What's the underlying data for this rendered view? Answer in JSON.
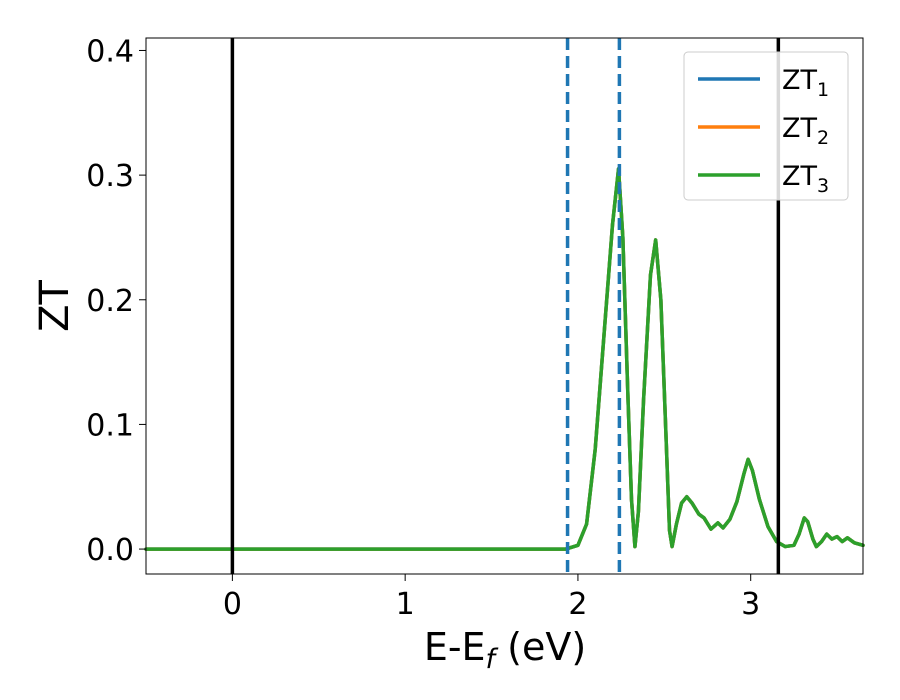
{
  "chart_data": {
    "type": "line",
    "xlabel": {
      "main": "E-E",
      "sub": "f",
      "suffix": " (eV)"
    },
    "ylabel": "ZT",
    "xlim": [
      -0.5,
      3.65
    ],
    "ylim": [
      -0.02,
      0.41
    ],
    "x_ticks": [
      0,
      1,
      2,
      3
    ],
    "y_ticks": [
      0.0,
      0.1,
      0.2,
      0.3,
      0.4
    ],
    "grid": false,
    "legend_position": "top-right",
    "series": [
      {
        "name": "ZT",
        "subscript": "1",
        "color": "#1f77b4",
        "points": [
          [
            -0.5,
            0
          ],
          [
            1.93,
            0
          ],
          [
            2.0,
            0.003
          ],
          [
            2.05,
            0.02
          ],
          [
            2.1,
            0.08
          ],
          [
            2.15,
            0.17
          ],
          [
            2.2,
            0.26
          ],
          [
            2.235,
            0.305
          ],
          [
            2.26,
            0.25
          ],
          [
            2.29,
            0.12
          ],
          [
            2.31,
            0.04
          ],
          [
            2.33,
            0.002
          ],
          [
            2.35,
            0.03
          ],
          [
            2.38,
            0.12
          ],
          [
            2.42,
            0.22
          ],
          [
            2.45,
            0.248
          ],
          [
            2.48,
            0.2
          ],
          [
            2.51,
            0.09
          ],
          [
            2.53,
            0.015
          ],
          [
            2.545,
            0.002
          ],
          [
            2.57,
            0.02
          ],
          [
            2.6,
            0.037
          ],
          [
            2.63,
            0.042
          ],
          [
            2.66,
            0.037
          ],
          [
            2.7,
            0.028
          ],
          [
            2.73,
            0.025
          ],
          [
            2.77,
            0.016
          ],
          [
            2.81,
            0.021
          ],
          [
            2.84,
            0.017
          ],
          [
            2.88,
            0.024
          ],
          [
            2.92,
            0.038
          ],
          [
            2.96,
            0.06
          ],
          [
            2.985,
            0.072
          ],
          [
            3.01,
            0.063
          ],
          [
            3.05,
            0.04
          ],
          [
            3.1,
            0.018
          ],
          [
            3.15,
            0.006
          ],
          [
            3.2,
            0.002
          ],
          [
            3.25,
            0.003
          ],
          [
            3.28,
            0.012
          ],
          [
            3.31,
            0.025
          ],
          [
            3.33,
            0.022
          ],
          [
            3.36,
            0.008
          ],
          [
            3.38,
            0.002
          ],
          [
            3.41,
            0.006
          ],
          [
            3.44,
            0.012
          ],
          [
            3.47,
            0.008
          ],
          [
            3.5,
            0.01
          ],
          [
            3.53,
            0.006
          ],
          [
            3.56,
            0.009
          ],
          [
            3.6,
            0.005
          ],
          [
            3.65,
            0.003
          ]
        ]
      },
      {
        "name": "ZT",
        "subscript": "2",
        "color": "#ff7f0e",
        "points": [
          [
            -0.5,
            0
          ],
          [
            1.93,
            0
          ],
          [
            2.0,
            0.003
          ],
          [
            2.05,
            0.02
          ],
          [
            2.1,
            0.08
          ],
          [
            2.15,
            0.17
          ],
          [
            2.2,
            0.26
          ],
          [
            2.235,
            0.305
          ],
          [
            2.26,
            0.25
          ],
          [
            2.29,
            0.12
          ],
          [
            2.31,
            0.04
          ],
          [
            2.33,
            0.002
          ],
          [
            2.35,
            0.03
          ],
          [
            2.38,
            0.12
          ],
          [
            2.42,
            0.22
          ],
          [
            2.45,
            0.248
          ],
          [
            2.48,
            0.2
          ],
          [
            2.51,
            0.09
          ],
          [
            2.53,
            0.015
          ],
          [
            2.545,
            0.002
          ],
          [
            2.57,
            0.02
          ],
          [
            2.6,
            0.037
          ],
          [
            2.63,
            0.042
          ],
          [
            2.66,
            0.037
          ],
          [
            2.7,
            0.028
          ],
          [
            2.73,
            0.025
          ],
          [
            2.77,
            0.016
          ],
          [
            2.81,
            0.021
          ],
          [
            2.84,
            0.017
          ],
          [
            2.88,
            0.024
          ],
          [
            2.92,
            0.038
          ],
          [
            2.96,
            0.06
          ],
          [
            2.985,
            0.072
          ],
          [
            3.01,
            0.063
          ],
          [
            3.05,
            0.04
          ],
          [
            3.1,
            0.018
          ],
          [
            3.15,
            0.006
          ],
          [
            3.2,
            0.002
          ],
          [
            3.25,
            0.003
          ],
          [
            3.28,
            0.012
          ],
          [
            3.31,
            0.025
          ],
          [
            3.33,
            0.022
          ],
          [
            3.36,
            0.008
          ],
          [
            3.38,
            0.002
          ],
          [
            3.41,
            0.006
          ],
          [
            3.44,
            0.012
          ],
          [
            3.47,
            0.008
          ],
          [
            3.5,
            0.01
          ],
          [
            3.53,
            0.006
          ],
          [
            3.56,
            0.009
          ],
          [
            3.6,
            0.005
          ],
          [
            3.65,
            0.003
          ]
        ]
      },
      {
        "name": "ZT",
        "subscript": "3",
        "color": "#2ca02c",
        "points": [
          [
            -0.5,
            0
          ],
          [
            1.93,
            0
          ],
          [
            2.0,
            0.003
          ],
          [
            2.05,
            0.02
          ],
          [
            2.1,
            0.08
          ],
          [
            2.15,
            0.17
          ],
          [
            2.2,
            0.26
          ],
          [
            2.235,
            0.305
          ],
          [
            2.26,
            0.25
          ],
          [
            2.29,
            0.12
          ],
          [
            2.31,
            0.04
          ],
          [
            2.33,
            0.002
          ],
          [
            2.35,
            0.03
          ],
          [
            2.38,
            0.12
          ],
          [
            2.42,
            0.22
          ],
          [
            2.45,
            0.248
          ],
          [
            2.48,
            0.2
          ],
          [
            2.51,
            0.09
          ],
          [
            2.53,
            0.015
          ],
          [
            2.545,
            0.002
          ],
          [
            2.57,
            0.02
          ],
          [
            2.6,
            0.037
          ],
          [
            2.63,
            0.042
          ],
          [
            2.66,
            0.037
          ],
          [
            2.7,
            0.028
          ],
          [
            2.73,
            0.025
          ],
          [
            2.77,
            0.016
          ],
          [
            2.81,
            0.021
          ],
          [
            2.84,
            0.017
          ],
          [
            2.88,
            0.024
          ],
          [
            2.92,
            0.038
          ],
          [
            2.96,
            0.06
          ],
          [
            2.985,
            0.072
          ],
          [
            3.01,
            0.063
          ],
          [
            3.05,
            0.04
          ],
          [
            3.1,
            0.018
          ],
          [
            3.15,
            0.006
          ],
          [
            3.2,
            0.002
          ],
          [
            3.25,
            0.003
          ],
          [
            3.28,
            0.012
          ],
          [
            3.31,
            0.025
          ],
          [
            3.33,
            0.022
          ],
          [
            3.36,
            0.008
          ],
          [
            3.38,
            0.002
          ],
          [
            3.41,
            0.006
          ],
          [
            3.44,
            0.012
          ],
          [
            3.47,
            0.008
          ],
          [
            3.5,
            0.01
          ],
          [
            3.53,
            0.006
          ],
          [
            3.56,
            0.009
          ],
          [
            3.6,
            0.005
          ],
          [
            3.65,
            0.003
          ]
        ]
      }
    ],
    "vertical_lines": [
      {
        "x": 0.0,
        "style": "solid",
        "color": "#000000"
      },
      {
        "x": 3.16,
        "style": "solid",
        "color": "#000000"
      },
      {
        "x": 1.94,
        "style": "dashed",
        "color": "#1f77b4"
      },
      {
        "x": 2.24,
        "style": "dashed",
        "color": "#1f77b4"
      }
    ]
  }
}
